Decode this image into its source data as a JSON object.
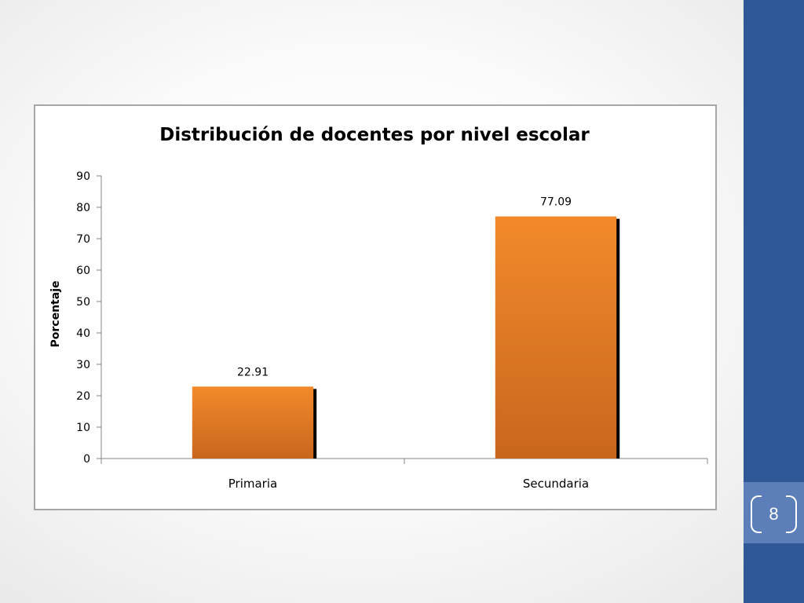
{
  "slide": {
    "page_number": "8",
    "band_color": "#2f5896",
    "badge_color": "#5c7fba"
  },
  "chart_data": {
    "type": "bar",
    "title": "Distribución de docentes por nivel escolar",
    "xlabel": "",
    "ylabel": "Porcentaje",
    "categories": [
      "Primaria",
      "Secundaria"
    ],
    "values": [
      22.91,
      77.09
    ],
    "data_labels": [
      "22.91",
      "77.09"
    ],
    "ylim": [
      0,
      90
    ],
    "yticks": [
      0,
      10,
      20,
      30,
      40,
      50,
      60,
      70,
      80,
      90
    ],
    "grid": false,
    "legend": "none",
    "bar_color": "#f28a2b",
    "bar_color_bottom": "#c9661e",
    "shadow_color": "#000000"
  }
}
